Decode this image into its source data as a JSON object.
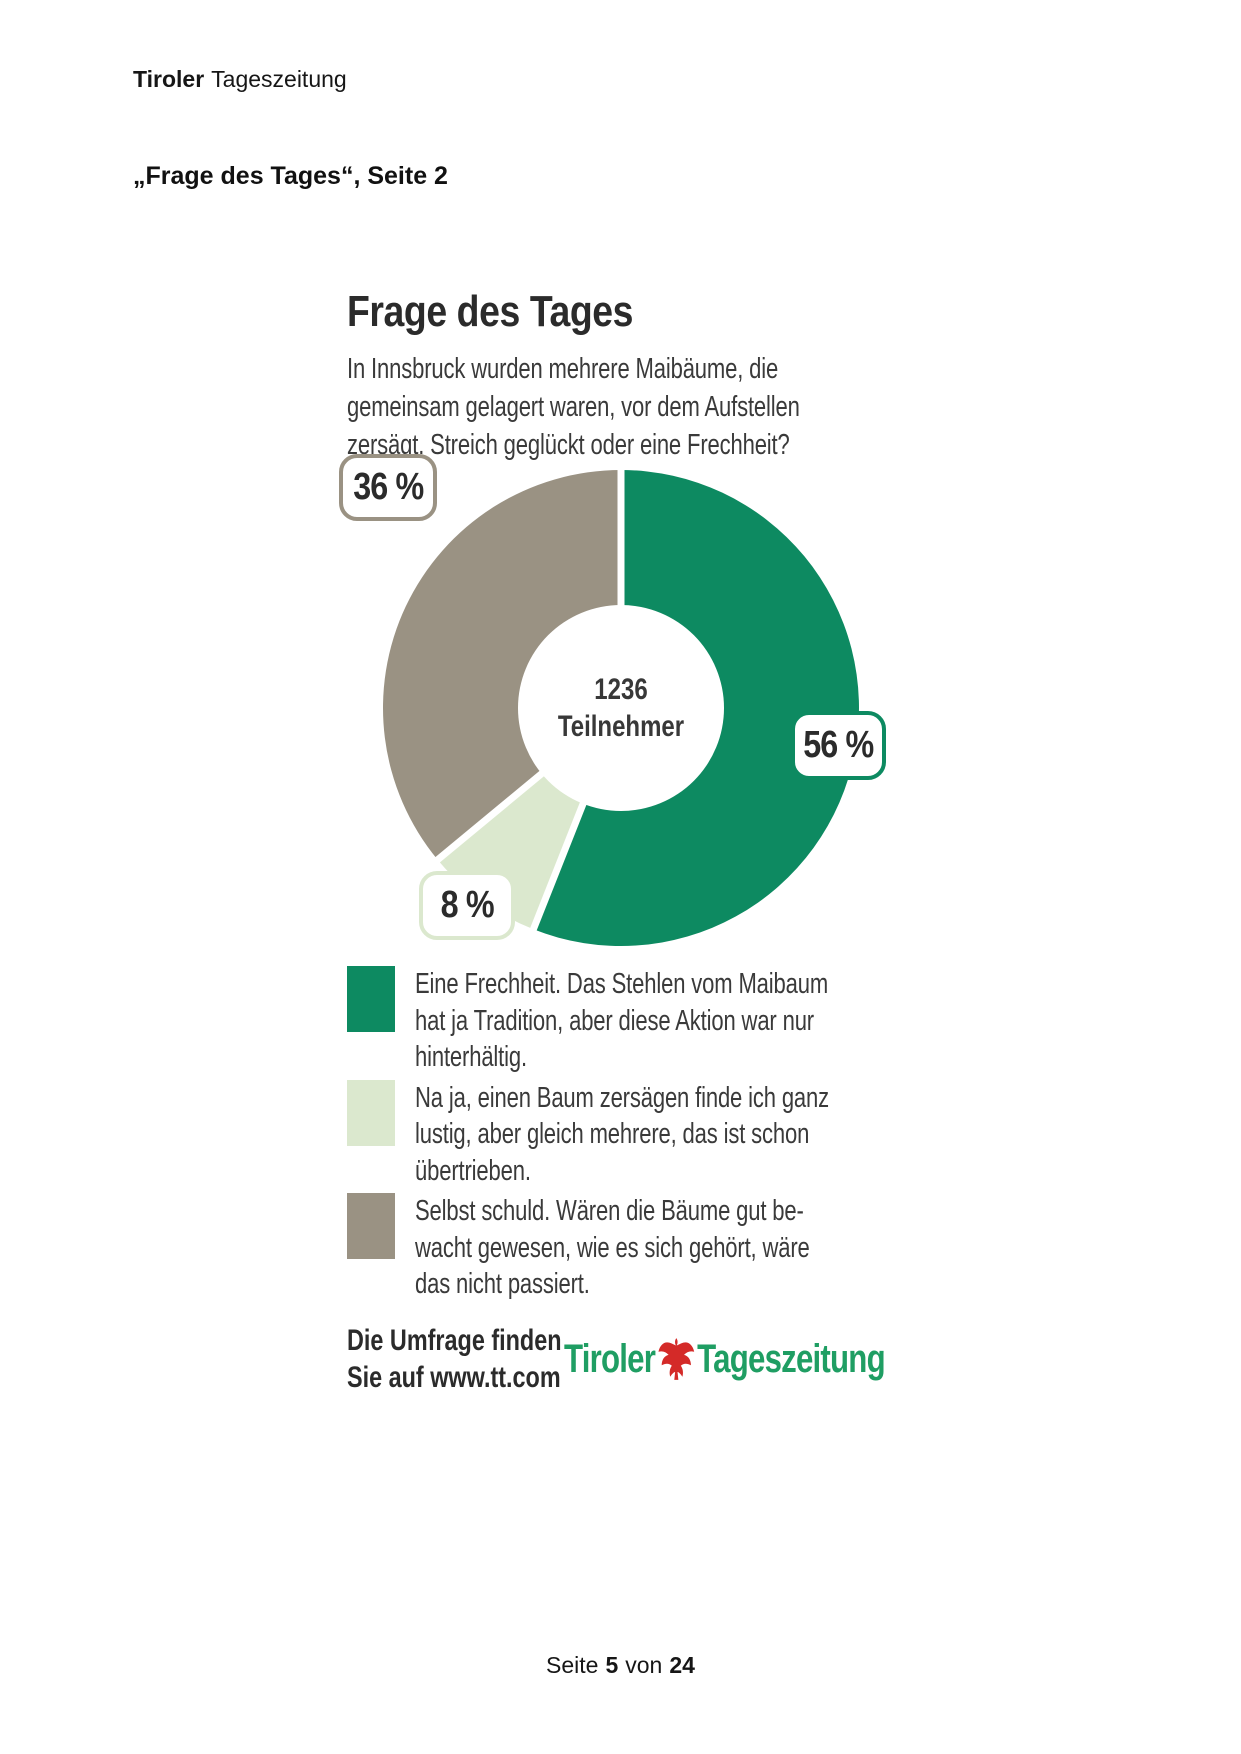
{
  "page": {
    "header": {
      "brand_bold": "Tiroler",
      "brand_regular": "Tageszeitung"
    },
    "doc_title": "„Frage des Tages“, Seite 2",
    "footer": {
      "prefix": "Seite",
      "page_number": "5",
      "separator": "von",
      "total_pages": "24"
    }
  },
  "infographic": {
    "title": "Frage des Tages",
    "question_lines": [
      "In Innsbruck wurden mehrere Maibäume, die",
      "gemeinsam gelagert waren, vor dem Aufstellen",
      "zersägt. Streich geglückt oder eine Frechheit?"
    ],
    "center": {
      "value": "1236",
      "label": "Teilnehmer"
    },
    "source": {
      "line1": "Die Umfrage finden",
      "line2": "Sie auf www.tt.com"
    },
    "logo": {
      "word_left": "Tiroler",
      "word_right": "Tageszeitung",
      "eagle_icon": "tyrolean-eagle",
      "text_color": "#1f9e63",
      "eagle_color": "#d42a28"
    }
  },
  "chart_data": {
    "type": "pie",
    "subtype": "donut",
    "title": "Frage des Tages",
    "question": "In Innsbruck wurden mehrere Maibäume, die gemeinsam gelagert waren, vor dem Aufstellen zersägt. Streich geglückt oder eine Frechheit?",
    "center_value": 1236,
    "center_label": "Teilnehmer",
    "start_angle_deg": 0,
    "direction": "clockwise",
    "gap_color": "#ffffff",
    "slices": [
      {
        "value_pct": 56,
        "badge_label": "56 %",
        "color": "#0d8a61",
        "label": "Eine Frechheit. Das Stehlen vom Maibaum hat ja Tradition, aber diese Aktion war nur hinterhältig.",
        "legend_lines": [
          "Eine Frechheit. Das Stehlen vom Maibaum",
          "hat ja Tradition, aber diese Aktion war nur",
          "hinterhältig."
        ]
      },
      {
        "value_pct": 8,
        "badge_label": "8 %",
        "color": "#dbe8ce",
        "label": "Na ja, einen Baum zersägen finde ich ganz lustig, aber gleich mehrere, das ist schon übertrieben.",
        "legend_lines": [
          "Na ja, einen Baum zersägen finde ich ganz",
          "lustig, aber gleich mehrere, das ist schon",
          "übertrieben."
        ]
      },
      {
        "value_pct": 36,
        "badge_label": "36 %",
        "color": "#9a9283",
        "label": "Selbst schuld. Wären die Bäume gut bewacht gewesen, wie es sich gehört, wäre das nicht passiert.",
        "legend_lines": [
          "Selbst schuld. Wären die Bäume gut be-",
          "wacht gewesen, wie es sich gehört, wäre",
          "das nicht passiert."
        ]
      }
    ]
  }
}
